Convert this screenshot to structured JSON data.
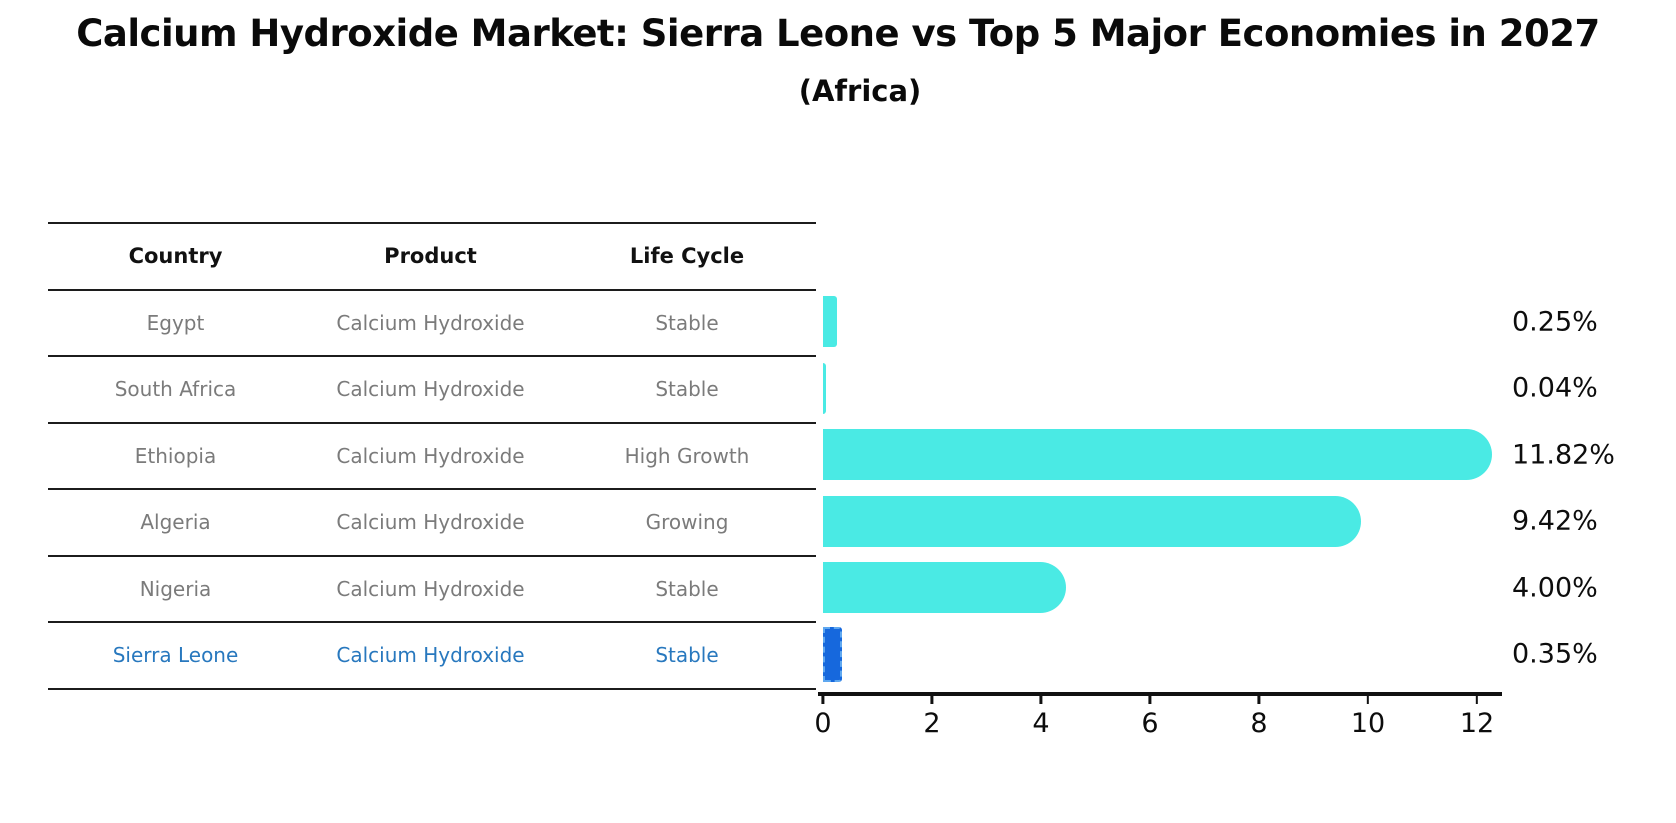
{
  "header": {
    "title": "Calcium Hydroxide Market: Sierra Leone vs Top 5 Major Economies in 2027",
    "subtitle": "(Africa)"
  },
  "table": {
    "columns": [
      "Country",
      "Product",
      "Life Cycle"
    ],
    "rows": [
      {
        "country": "Egypt",
        "product": "Calcium Hydroxide",
        "life_cycle": "Stable",
        "highlight": false
      },
      {
        "country": "South Africa",
        "product": "Calcium Hydroxide",
        "life_cycle": "Stable",
        "highlight": false
      },
      {
        "country": "Ethiopia",
        "product": "Calcium Hydroxide",
        "life_cycle": "High Growth",
        "highlight": false
      },
      {
        "country": "Algeria",
        "product": "Calcium Hydroxide",
        "life_cycle": "Growing",
        "highlight": false
      },
      {
        "country": "Nigeria",
        "product": "Calcium Hydroxide",
        "life_cycle": "Stable",
        "highlight": false
      },
      {
        "country": "Sierra Leone",
        "product": "Calcium Hydroxide",
        "life_cycle": "Stable",
        "highlight": true
      }
    ]
  },
  "chart_data": {
    "type": "bar",
    "orientation": "horizontal",
    "title": "Calcium Hydroxide Market: Sierra Leone vs Top 5 Major Economies in 2027",
    "subtitle": "(Africa)",
    "categories": [
      "Egypt",
      "South Africa",
      "Ethiopia",
      "Algeria",
      "Nigeria",
      "Sierra Leone"
    ],
    "values": [
      0.25,
      0.04,
      11.82,
      9.42,
      4.0,
      0.35
    ],
    "value_labels": [
      "0.25%",
      "0.04%",
      "11.82%",
      "9.42%",
      "4.00%",
      "0.35%"
    ],
    "unit": "percent",
    "xticks": [
      0,
      2,
      4,
      6,
      8,
      10,
      12
    ],
    "xlim": [
      0,
      12.5
    ],
    "grid": false,
    "legend": "none",
    "highlight_index": 5,
    "colors": {
      "bar": "#4aeae4",
      "highlight_bar": "#1668dd",
      "highlight_edge": "#5fa8f0",
      "highlight_text": "#2878be",
      "text": "#0d0d0d",
      "muted_text": "#7b7b7b"
    }
  }
}
